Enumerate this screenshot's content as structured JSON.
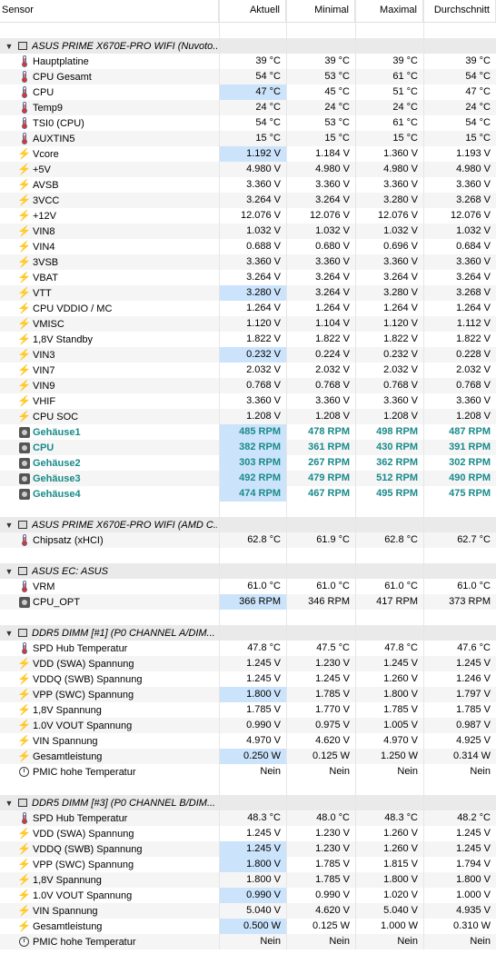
{
  "header": {
    "sensor": "Sensor",
    "current": "Aktuell",
    "min": "Minimal",
    "max": "Maximal",
    "avg": "Durchschnitt"
  },
  "groups": [
    {
      "name": "ASUS PRIME X670E-PRO WIFI (Nuvoto...",
      "rows": [
        {
          "type": "temp",
          "name": "Hauptplatine",
          "cur": "39 °C",
          "min": "39 °C",
          "max": "39 °C",
          "avg": "39 °C"
        },
        {
          "type": "temp",
          "name": "CPU Gesamt",
          "cur": "54 °C",
          "min": "53 °C",
          "max": "61 °C",
          "avg": "54 °C"
        },
        {
          "type": "temp",
          "name": "CPU",
          "cur": "47 °C",
          "min": "45 °C",
          "max": "51 °C",
          "avg": "47 °C",
          "hl": true
        },
        {
          "type": "temp",
          "name": "Temp9",
          "cur": "24 °C",
          "min": "24 °C",
          "max": "24 °C",
          "avg": "24 °C"
        },
        {
          "type": "temp",
          "name": "TSI0 (CPU)",
          "cur": "54 °C",
          "min": "53 °C",
          "max": "61 °C",
          "avg": "54 °C"
        },
        {
          "type": "temp",
          "name": "AUXTIN5",
          "cur": "15 °C",
          "min": "15 °C",
          "max": "15 °C",
          "avg": "15 °C"
        },
        {
          "type": "volt",
          "name": "Vcore",
          "cur": "1.192 V",
          "min": "1.184 V",
          "max": "1.360 V",
          "avg": "1.193 V",
          "hl": true
        },
        {
          "type": "volt",
          "name": "+5V",
          "cur": "4.980 V",
          "min": "4.980 V",
          "max": "4.980 V",
          "avg": "4.980 V"
        },
        {
          "type": "volt",
          "name": "AVSB",
          "cur": "3.360 V",
          "min": "3.360 V",
          "max": "3.360 V",
          "avg": "3.360 V"
        },
        {
          "type": "volt",
          "name": "3VCC",
          "cur": "3.264 V",
          "min": "3.264 V",
          "max": "3.280 V",
          "avg": "3.268 V"
        },
        {
          "type": "volt",
          "name": "+12V",
          "cur": "12.076 V",
          "min": "12.076 V",
          "max": "12.076 V",
          "avg": "12.076 V"
        },
        {
          "type": "volt",
          "name": "VIN8",
          "cur": "1.032 V",
          "min": "1.032 V",
          "max": "1.032 V",
          "avg": "1.032 V"
        },
        {
          "type": "volt",
          "name": "VIN4",
          "cur": "0.688 V",
          "min": "0.680 V",
          "max": "0.696 V",
          "avg": "0.684 V"
        },
        {
          "type": "volt",
          "name": "3VSB",
          "cur": "3.360 V",
          "min": "3.360 V",
          "max": "3.360 V",
          "avg": "3.360 V"
        },
        {
          "type": "volt",
          "name": "VBAT",
          "cur": "3.264 V",
          "min": "3.264 V",
          "max": "3.264 V",
          "avg": "3.264 V"
        },
        {
          "type": "volt",
          "name": "VTT",
          "cur": "3.280 V",
          "min": "3.264 V",
          "max": "3.280 V",
          "avg": "3.268 V",
          "hl": true
        },
        {
          "type": "volt",
          "name": "CPU VDDIO / MC",
          "cur": "1.264 V",
          "min": "1.264 V",
          "max": "1.264 V",
          "avg": "1.264 V"
        },
        {
          "type": "volt",
          "name": "VMISC",
          "cur": "1.120 V",
          "min": "1.104 V",
          "max": "1.120 V",
          "avg": "1.112 V"
        },
        {
          "type": "volt",
          "name": "1,8V Standby",
          "cur": "1.822 V",
          "min": "1.822 V",
          "max": "1.822 V",
          "avg": "1.822 V"
        },
        {
          "type": "volt",
          "name": "VIN3",
          "cur": "0.232 V",
          "min": "0.224 V",
          "max": "0.232 V",
          "avg": "0.228 V",
          "hl": true
        },
        {
          "type": "volt",
          "name": "VIN7",
          "cur": "2.032 V",
          "min": "2.032 V",
          "max": "2.032 V",
          "avg": "2.032 V"
        },
        {
          "type": "volt",
          "name": "VIN9",
          "cur": "0.768 V",
          "min": "0.768 V",
          "max": "0.768 V",
          "avg": "0.768 V"
        },
        {
          "type": "volt",
          "name": "VHIF",
          "cur": "3.360 V",
          "min": "3.360 V",
          "max": "3.360 V",
          "avg": "3.360 V"
        },
        {
          "type": "volt",
          "name": "CPU SOC",
          "cur": "1.208 V",
          "min": "1.208 V",
          "max": "1.208 V",
          "avg": "1.208 V"
        },
        {
          "type": "fan",
          "name": "Gehäuse1",
          "cur": "485 RPM",
          "min": "478 RPM",
          "max": "498 RPM",
          "avg": "487 RPM",
          "hl": true,
          "bold": true
        },
        {
          "type": "fan",
          "name": "CPU",
          "cur": "382 RPM",
          "min": "361 RPM",
          "max": "430 RPM",
          "avg": "391 RPM",
          "hl": true,
          "bold": true
        },
        {
          "type": "fan",
          "name": "Gehäuse2",
          "cur": "303 RPM",
          "min": "267 RPM",
          "max": "362 RPM",
          "avg": "302 RPM",
          "hl": true,
          "bold": true
        },
        {
          "type": "fan",
          "name": "Gehäuse3",
          "cur": "492 RPM",
          "min": "479 RPM",
          "max": "512 RPM",
          "avg": "490 RPM",
          "hl": true,
          "bold": true
        },
        {
          "type": "fan",
          "name": "Gehäuse4",
          "cur": "474 RPM",
          "min": "467 RPM",
          "max": "495 RPM",
          "avg": "475 RPM",
          "hl": true,
          "bold": true
        }
      ]
    },
    {
      "name": "ASUS PRIME X670E-PRO WIFI (AMD C...",
      "rows": [
        {
          "type": "temp",
          "name": "Chipsatz (xHCI)",
          "cur": "62.8 °C",
          "min": "61.9 °C",
          "max": "62.8 °C",
          "avg": "62.7 °C"
        }
      ]
    },
    {
      "name": "ASUS EC: ASUS",
      "rows": [
        {
          "type": "temp",
          "name": "VRM",
          "cur": "61.0 °C",
          "min": "61.0 °C",
          "max": "61.0 °C",
          "avg": "61.0 °C"
        },
        {
          "type": "fanplain",
          "name": "CPU_OPT",
          "cur": "366 RPM",
          "min": "346 RPM",
          "max": "417 RPM",
          "avg": "373 RPM",
          "hl": true
        }
      ]
    },
    {
      "name": "DDR5 DIMM [#1] (P0 CHANNEL A/DIM...",
      "rows": [
        {
          "type": "temp",
          "name": "SPD Hub Temperatur",
          "cur": "47.8 °C",
          "min": "47.5 °C",
          "max": "47.8 °C",
          "avg": "47.6 °C"
        },
        {
          "type": "volt",
          "name": "VDD (SWA) Spannung",
          "cur": "1.245 V",
          "min": "1.230 V",
          "max": "1.245 V",
          "avg": "1.245 V"
        },
        {
          "type": "volt",
          "name": "VDDQ (SWB) Spannung",
          "cur": "1.245 V",
          "min": "1.245 V",
          "max": "1.260 V",
          "avg": "1.246 V"
        },
        {
          "type": "volt",
          "name": "VPP (SWC) Spannung",
          "cur": "1.800 V",
          "min": "1.785 V",
          "max": "1.800 V",
          "avg": "1.797 V",
          "hl": true
        },
        {
          "type": "volt",
          "name": "1,8V Spannung",
          "cur": "1.785 V",
          "min": "1.770 V",
          "max": "1.785 V",
          "avg": "1.785 V"
        },
        {
          "type": "volt",
          "name": "1.0V VOUT Spannung",
          "cur": "0.990 V",
          "min": "0.975 V",
          "max": "1.005 V",
          "avg": "0.987 V"
        },
        {
          "type": "volt",
          "name": "VIN Spannung",
          "cur": "4.970 V",
          "min": "4.620 V",
          "max": "4.970 V",
          "avg": "4.925 V"
        },
        {
          "type": "volt",
          "name": "Gesamtleistung",
          "cur": "0.250 W",
          "min": "0.125 W",
          "max": "1.250 W",
          "avg": "0.314 W",
          "hl": true
        },
        {
          "type": "clock",
          "name": "PMIC hohe Temperatur",
          "cur": "Nein",
          "min": "Nein",
          "max": "Nein",
          "avg": "Nein"
        }
      ]
    },
    {
      "name": "DDR5 DIMM [#3] (P0 CHANNEL B/DIM...",
      "rows": [
        {
          "type": "temp",
          "name": "SPD Hub Temperatur",
          "cur": "48.3 °C",
          "min": "48.0 °C",
          "max": "48.3 °C",
          "avg": "48.2 °C"
        },
        {
          "type": "volt",
          "name": "VDD (SWA) Spannung",
          "cur": "1.245 V",
          "min": "1.230 V",
          "max": "1.260 V",
          "avg": "1.245 V"
        },
        {
          "type": "volt",
          "name": "VDDQ (SWB) Spannung",
          "cur": "1.245 V",
          "min": "1.230 V",
          "max": "1.260 V",
          "avg": "1.245 V",
          "hl": true
        },
        {
          "type": "volt",
          "name": "VPP (SWC) Spannung",
          "cur": "1.800 V",
          "min": "1.785 V",
          "max": "1.815 V",
          "avg": "1.794 V",
          "hl": true
        },
        {
          "type": "volt",
          "name": "1,8V Spannung",
          "cur": "1.800 V",
          "min": "1.785 V",
          "max": "1.800 V",
          "avg": "1.800 V"
        },
        {
          "type": "volt",
          "name": "1.0V VOUT Spannung",
          "cur": "0.990 V",
          "min": "0.990 V",
          "max": "1.020 V",
          "avg": "1.000 V",
          "hl": true
        },
        {
          "type": "volt",
          "name": "VIN Spannung",
          "cur": "5.040 V",
          "min": "4.620 V",
          "max": "5.040 V",
          "avg": "4.935 V"
        },
        {
          "type": "volt",
          "name": "Gesamtleistung",
          "cur": "0.500 W",
          "min": "0.125 W",
          "max": "1.000 W",
          "avg": "0.310 W",
          "hl": true
        },
        {
          "type": "clock",
          "name": "PMIC hohe Temperatur",
          "cur": "Nein",
          "min": "Nein",
          "max": "Nein",
          "avg": "Nein"
        }
      ]
    }
  ]
}
